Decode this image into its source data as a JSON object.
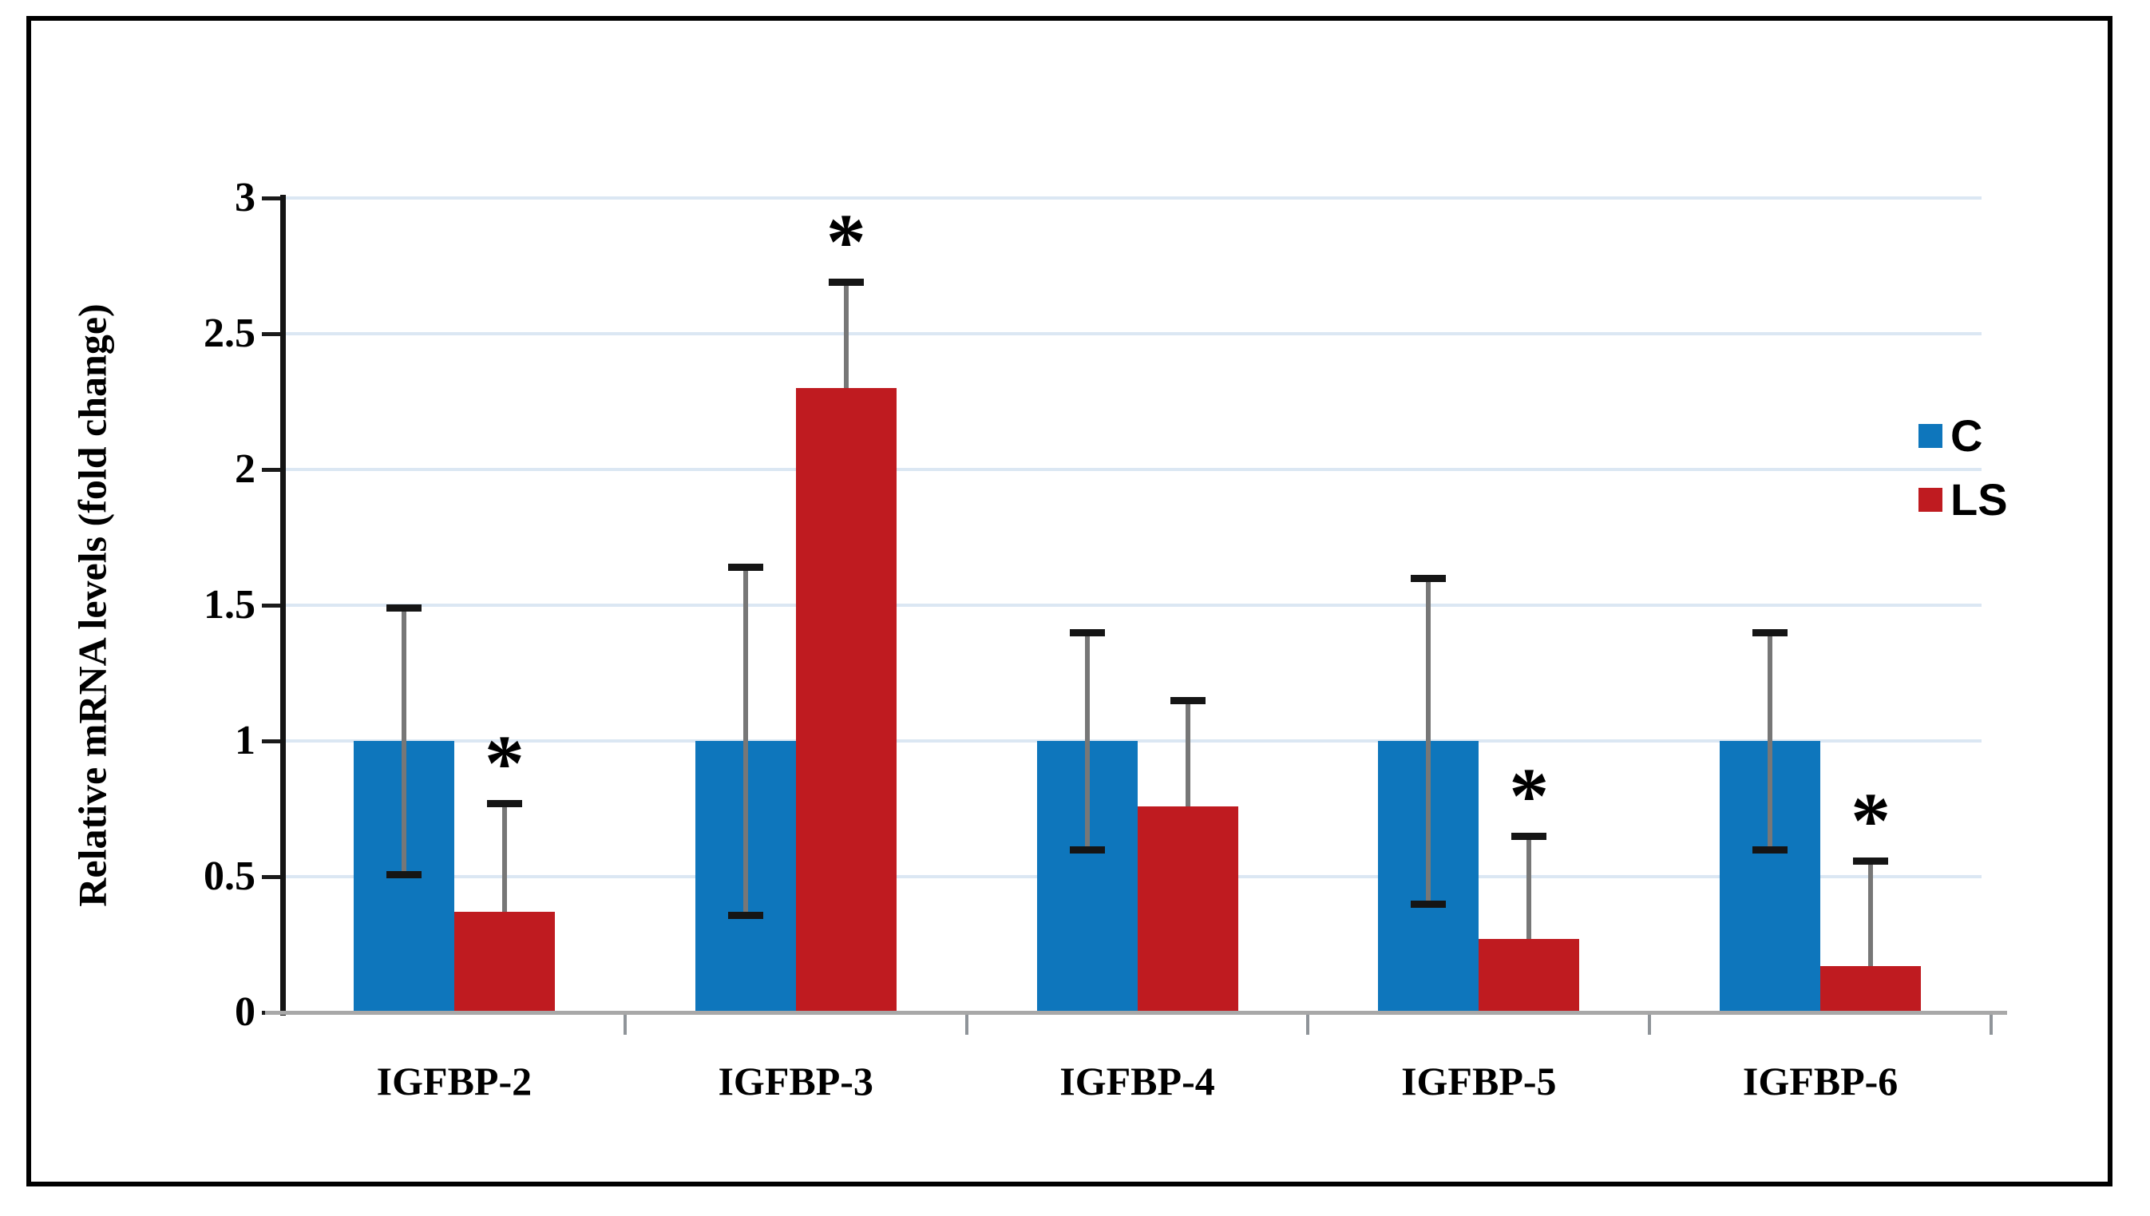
{
  "chart_data": {
    "type": "bar",
    "title": "",
    "xlabel": "",
    "ylabel": "Relative mRNA levels  (fold change)",
    "ylim": [
      0,
      3
    ],
    "grid": true,
    "legend_position": "right",
    "y_tick_values": [
      0,
      0.5,
      1,
      1.5,
      2,
      2.5,
      3
    ],
    "y_tick_labels": [
      "0",
      "0.5",
      "1",
      "1.5",
      "2",
      "2.5",
      "3"
    ],
    "categories": [
      "IGFBP-2",
      "IGFBP-3",
      "IGFBP-4",
      "IGFBP-5",
      "IGFBP-6"
    ],
    "series": [
      {
        "name": "C",
        "color": "#0E76BC",
        "values": [
          1.0,
          1.0,
          1.0,
          1.0,
          1.0
        ],
        "errors": [
          0.49,
          0.64,
          0.4,
          0.6,
          0.4
        ],
        "error_style": "symmetric",
        "significant": [
          false,
          false,
          false,
          false,
          false
        ]
      },
      {
        "name": "LS",
        "color": "#BF1B20",
        "values": [
          0.37,
          2.3,
          0.76,
          0.27,
          0.17
        ],
        "errors": [
          0.4,
          0.39,
          0.39,
          0.38,
          0.39
        ],
        "error_style": "upper",
        "significant": [
          true,
          true,
          false,
          true,
          true
        ]
      }
    ],
    "significance_marker": "*",
    "colors": {
      "gridline": "#DBE7F3",
      "baseline": "#A8A8A8",
      "axis": "#141414",
      "whisker": "#777777",
      "cap": "#151515",
      "frame": "#000000"
    }
  }
}
